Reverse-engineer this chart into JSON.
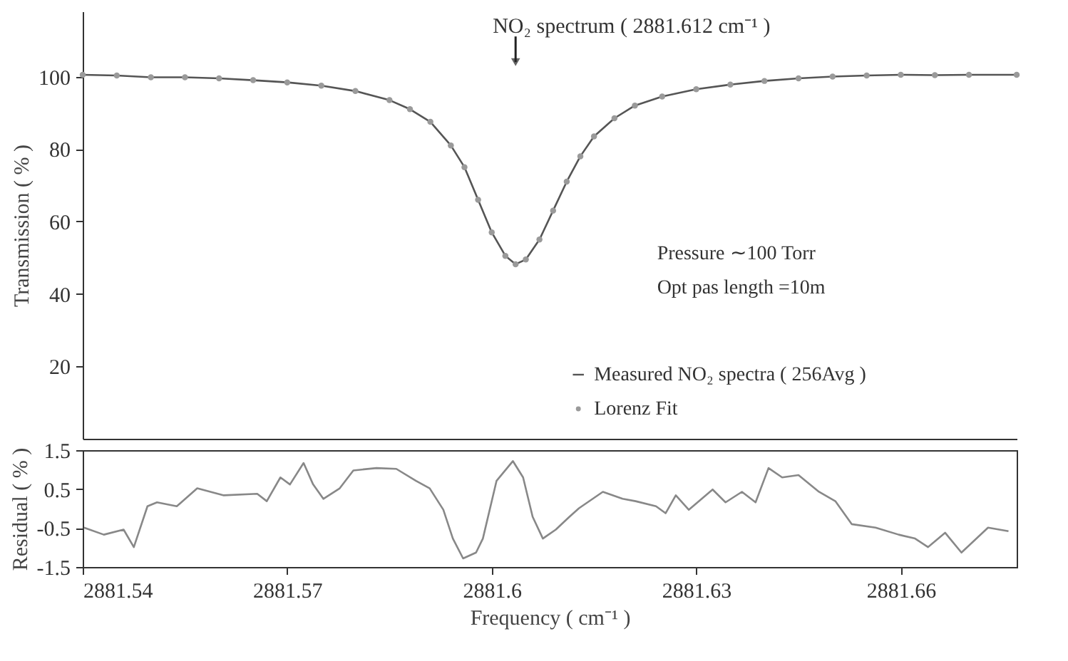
{
  "chart_data": [
    {
      "type": "line",
      "ylabel": "Transmission ( % )",
      "xlim": [
        2881.54,
        2881.677
      ],
      "ylim": [
        0,
        118
      ],
      "yticks": [
        20,
        40,
        60,
        80,
        100
      ],
      "tick_labels": "y",
      "grid": false,
      "legend": "bottom right",
      "annotations": [
        {
          "text": "NO₂ spectrum ( 2881.612 cm⁻¹ )",
          "x": 2881.6035,
          "y": 104
        },
        "Pressure ∼100 Torr",
        "Opt pas length =10m"
      ],
      "series": [
        {
          "name": "Measured NO₂ spectra ( 256Avg )",
          "color": "#555555",
          "x": [
            2881.54,
            2881.545,
            2881.55,
            2881.555,
            2881.56,
            2881.565,
            2881.57,
            2881.575,
            2881.58,
            2881.585,
            2881.588,
            2881.591,
            2881.594,
            2881.596,
            2881.598,
            2881.6,
            2881.602,
            2881.6035,
            2881.605,
            2881.607,
            2881.609,
            2881.611,
            2881.613,
            2881.615,
            2881.618,
            2881.621,
            2881.625,
            2881.63,
            2881.635,
            2881.64,
            2881.645,
            2881.65,
            2881.655,
            2881.66,
            2881.665,
            2881.67,
            2881.677
          ],
          "values": [
            100.5,
            100.3,
            99.8,
            99.8,
            99.5,
            99.0,
            98.4,
            97.5,
            96.0,
            93.5,
            91.0,
            87.5,
            81.0,
            75.0,
            66.0,
            57.0,
            50.5,
            48.2,
            49.5,
            55.0,
            63.0,
            71.0,
            78.0,
            83.5,
            88.5,
            92.0,
            94.5,
            96.5,
            97.8,
            98.8,
            99.5,
            100.0,
            100.3,
            100.5,
            100.4,
            100.5,
            100.5
          ]
        },
        {
          "name": "Lorenz Fit",
          "type": "scatter",
          "marker": "circle",
          "color": "#9a9a9a",
          "x": [
            2881.54,
            2881.545,
            2881.55,
            2881.555,
            2881.56,
            2881.565,
            2881.57,
            2881.575,
            2881.58,
            2881.585,
            2881.588,
            2881.591,
            2881.594,
            2881.596,
            2881.598,
            2881.6,
            2881.602,
            2881.6035,
            2881.605,
            2881.607,
            2881.609,
            2881.611,
            2881.613,
            2881.615,
            2881.618,
            2881.621,
            2881.625,
            2881.63,
            2881.635,
            2881.64,
            2881.645,
            2881.65,
            2881.655,
            2881.66,
            2881.665,
            2881.67,
            2881.677
          ],
          "values": [
            100.5,
            100.3,
            99.8,
            99.8,
            99.5,
            99.0,
            98.4,
            97.5,
            96.0,
            93.5,
            91.0,
            87.5,
            81.0,
            75.0,
            66.0,
            57.0,
            50.5,
            48.2,
            49.5,
            55.0,
            63.0,
            71.0,
            78.0,
            83.5,
            88.5,
            92.0,
            94.5,
            96.5,
            97.8,
            98.8,
            99.5,
            100.0,
            100.3,
            100.5,
            100.4,
            100.5,
            100.5
          ]
        }
      ]
    },
    {
      "type": "line",
      "xlabel": "Frequency ( cm⁻¹ )",
      "ylabel": "Residual ( % )",
      "xlim": [
        2881.54,
        2881.677
      ],
      "xticks": [
        2881.54,
        2881.57,
        2881.6,
        2881.63,
        2881.66
      ],
      "ylim": [
        -1.5,
        1.5
      ],
      "yticks": [
        -1.5,
        -0.5,
        0.5,
        1.5
      ],
      "grid": false,
      "series": [
        {
          "color": "#888888",
          "x": [
            2881.5402,
            2881.5431,
            2881.546,
            2881.5475,
            2881.5495,
            2881.5509,
            2881.5538,
            2881.5568,
            2881.5607,
            2881.5656,
            2881.567,
            2881.569,
            2881.5704,
            2881.5724,
            2881.5738,
            2881.5753,
            2881.5777,
            2881.5797,
            2881.5831,
            2881.586,
            2881.5889,
            2881.5909,
            2881.5929,
            2881.5943,
            2881.5958,
            2881.5977,
            2881.5987,
            2881.6007,
            2881.6031,
            2881.6046,
            2881.606,
            2881.6075,
            2881.6094,
            2881.6114,
            2881.6128,
            2881.6163,
            2881.6192,
            2881.6211,
            2881.6241,
            2881.6255,
            2881.627,
            2881.6289,
            2881.6324,
            2881.6343,
            2881.6367,
            2881.6387,
            2881.6406,
            2881.6426,
            2881.645,
            2881.648,
            2881.6504,
            2881.6528,
            2881.6563,
            2881.6597,
            2881.6621,
            2881.664,
            2881.6665,
            2881.6689,
            2881.6728,
            2881.6758
          ],
          "values": [
            -0.49,
            -0.67,
            -0.54,
            -0.99,
            0.06,
            0.16,
            0.06,
            0.52,
            0.34,
            0.38,
            0.19,
            0.8,
            0.62,
            1.17,
            0.62,
            0.25,
            0.52,
            0.98,
            1.04,
            1.02,
            0.71,
            0.52,
            -0.03,
            -0.77,
            -1.28,
            -1.13,
            -0.77,
            0.71,
            1.22,
            0.8,
            -0.21,
            -0.77,
            -0.54,
            -0.21,
            0.01,
            0.43,
            0.25,
            0.19,
            0.06,
            -0.12,
            0.34,
            -0.03,
            0.49,
            0.16,
            0.43,
            0.16,
            1.04,
            0.8,
            0.86,
            0.43,
            0.19,
            -0.4,
            -0.49,
            -0.67,
            -0.77,
            -0.99,
            -0.62,
            -1.13,
            -0.49,
            -0.58
          ]
        }
      ]
    }
  ]
}
